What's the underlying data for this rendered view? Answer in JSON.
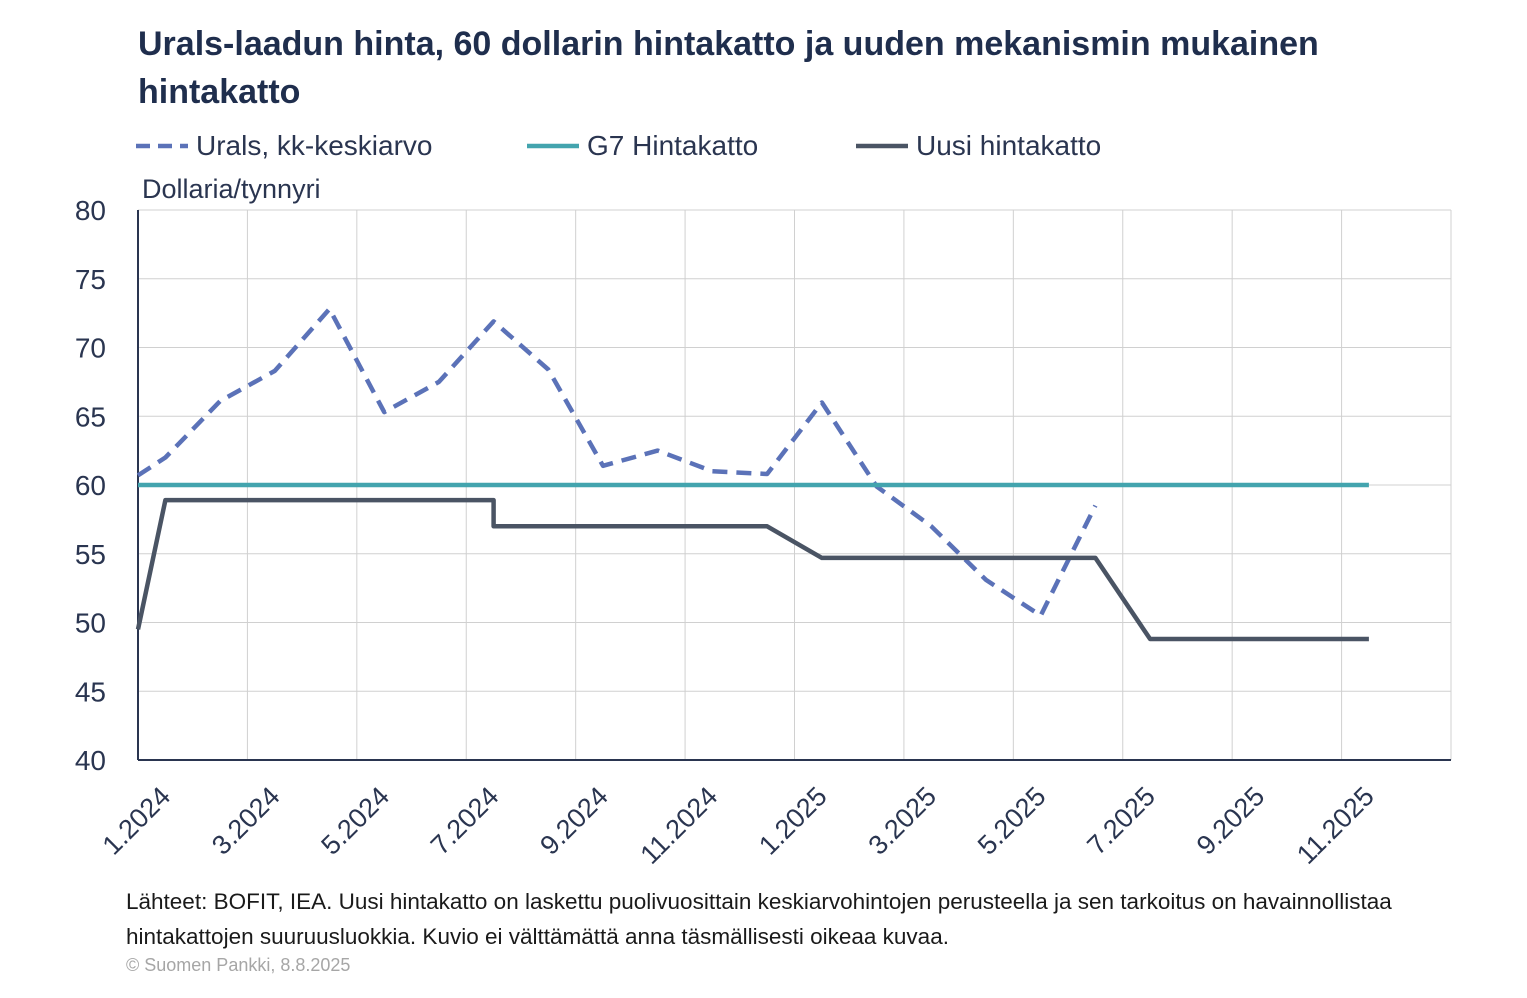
{
  "title": "Urals-laadun hinta, 60 dollarin hintakatto ja uuden mekanismin mukainen hintakatto",
  "unit_label": "Dollaria/tynnyri",
  "source_text": "Lähteet: BOFIT, IEA. Uusi hintakatto on laskettu puolivuosittain keskiarvohintojen perusteella ja sen tarkoitus on havainnollistaa hintakattojen suuruusluokkia. Kuvio ei välttämättä anna täsmällisesti oikeaa kuvaa.",
  "copyright": "© Suomen Pankki, 8.8.2025",
  "colors": {
    "urals": "#5b72b8",
    "g7": "#43a4ae",
    "new_cap": "#4a5464",
    "text": "#1f2e4d",
    "grid": "#d0d0d0",
    "axis": "#2a3550"
  },
  "chart_data": {
    "type": "line",
    "title": "Urals-laadun hinta, 60 dollarin hintakatto ja uuden mekanismin mukainen hintakatto",
    "ylabel": "Dollaria/tynnyri",
    "xlabel": "",
    "ylim": [
      40,
      80
    ],
    "yticks": [
      40,
      45,
      50,
      55,
      60,
      65,
      70,
      75,
      80
    ],
    "xlim": [
      "1.2024",
      "12.2025"
    ],
    "xtick_labels": [
      "1.2024",
      "3.2024",
      "5.2024",
      "7.2024",
      "9.2024",
      "11.2024",
      "1.2025",
      "3.2025",
      "5.2025",
      "7.2025",
      "9.2025",
      "11.2025"
    ],
    "grid": true,
    "legend_position": "top",
    "series": [
      {
        "name": "Urals, kk-keskiarvo",
        "style": "dashed",
        "x": [
          "1.2024",
          "1.2024",
          "2.2024",
          "3.2024",
          "4.2024",
          "5.2024",
          "6.2024",
          "7.2024",
          "8.2024",
          "9.2024",
          "10.2024",
          "11.2024",
          "12.2024",
          "1.2025",
          "2.2025",
          "3.2025",
          "4.2025",
          "5.2025",
          "6.2025"
        ],
        "values": [
          60.7,
          62.0,
          66.1,
          68.3,
          72.8,
          65.3,
          67.5,
          71.9,
          68.4,
          61.4,
          62.5,
          61.0,
          60.8,
          66.0,
          59.9,
          57.0,
          53.1,
          50.5,
          58.5
        ]
      },
      {
        "name": "G7 Hintakatto",
        "style": "solid",
        "x": [
          "1.2024",
          "11.2025"
        ],
        "values": [
          60.0,
          60.0
        ]
      },
      {
        "name": "Uusi hintakatto",
        "style": "solid",
        "x": [
          "1.2024",
          "1.2024",
          "7.2024",
          "7.2024",
          "12.2024",
          "1.2025",
          "6.2025",
          "7.2025",
          "11.2025"
        ],
        "values": [
          49.5,
          58.9,
          58.9,
          57.0,
          57.0,
          54.7,
          54.7,
          48.8,
          48.8
        ]
      }
    ]
  }
}
